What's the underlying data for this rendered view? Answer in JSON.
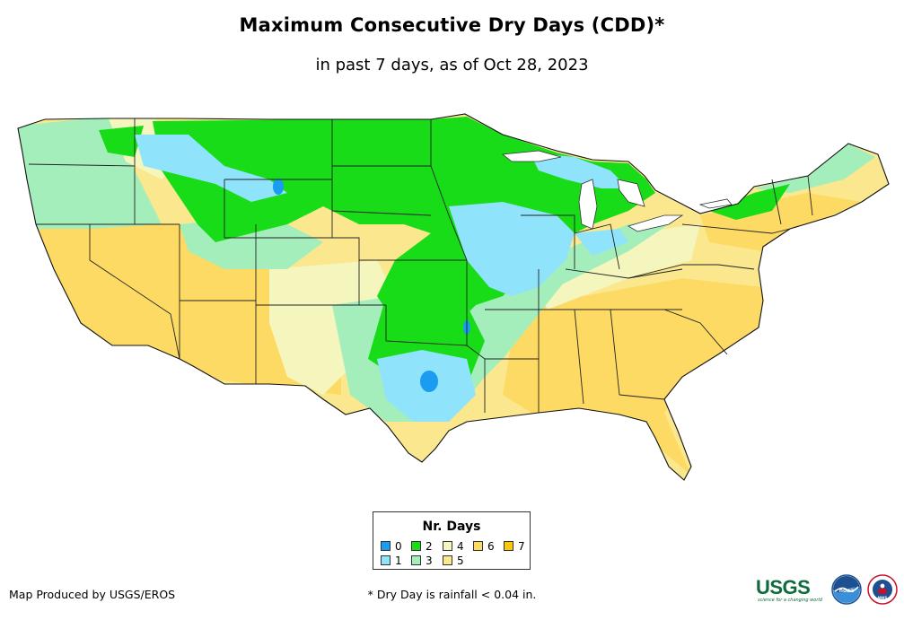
{
  "title": "Maximum Consecutive Dry Days (CDD)*",
  "subtitle": "in past 7 days, as of Oct 28, 2023",
  "legend": {
    "title": "Nr. Days",
    "items": [
      {
        "label": "0",
        "color": "#1a9cf0"
      },
      {
        "label": "1",
        "color": "#8fe3fb"
      },
      {
        "label": "2",
        "color": "#18dc18"
      },
      {
        "label": "3",
        "color": "#a4eebc"
      },
      {
        "label": "4",
        "color": "#f5f5be"
      },
      {
        "label": "5",
        "color": "#fbe88e"
      },
      {
        "label": "6",
        "color": "#fdda63"
      },
      {
        "label": "7",
        "color": "#fbc80a"
      }
    ]
  },
  "credit": "Map Produced by USGS/EROS",
  "footnote": "* Dry Day is rainfall < 0.04 in.",
  "logos": {
    "usgs": {
      "name": "USGS",
      "tagline": "science for a changing world",
      "color": "#0f6b3d"
    },
    "noaa": {
      "name": "noaa"
    },
    "nws": {
      "name": "NWS"
    }
  }
}
